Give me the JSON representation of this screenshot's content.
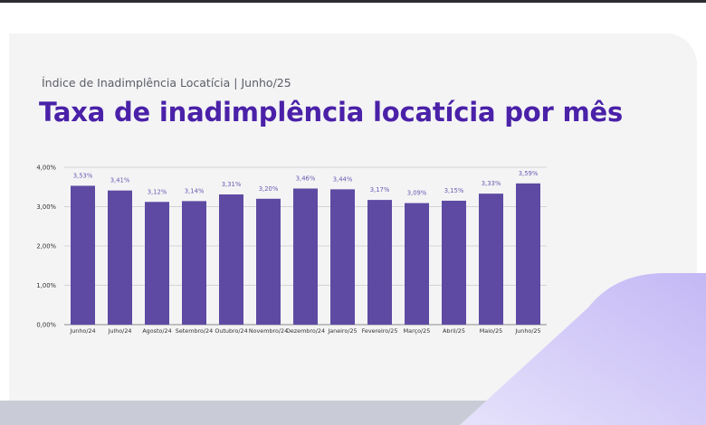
{
  "header": {
    "subtitle": "Índice de Inadimplência Locatícia | Junho/25",
    "title": "Taxa de inadimplência locatícia por mês"
  },
  "colors": {
    "bar": "#5e4aa3",
    "title": "#4a21a8",
    "value_label": "#6a5bb0",
    "accent_gradient_start": "#e6e2fb",
    "accent_gradient_end": "#c4b8f5"
  },
  "chart_data": {
    "type": "bar",
    "categories": [
      "Junho/24",
      "Julho/24",
      "Agosto/24",
      "Setembro/24",
      "Outubro/24",
      "Novembro/24",
      "Dezembro/24",
      "Janeiro/25",
      "Fevereiro/25",
      "Março/25",
      "Abril/25",
      "Maio/25",
      "Junho/25"
    ],
    "values": [
      3.53,
      3.41,
      3.12,
      3.14,
      3.31,
      3.2,
      3.46,
      3.44,
      3.17,
      3.09,
      3.15,
      3.33,
      3.59
    ],
    "value_labels": [
      "3,53%",
      "3,41%",
      "3,12%",
      "3,14%",
      "3,31%",
      "3,20%",
      "3,46%",
      "3,44%",
      "3,17%",
      "3,09%",
      "3,15%",
      "3,33%",
      "3,59%"
    ],
    "yticks": [
      0,
      1,
      2,
      3,
      4
    ],
    "ytick_labels": [
      "0,00%",
      "1,00%",
      "2,00%",
      "3,00%",
      "4,00%"
    ],
    "ylim": [
      0,
      4
    ],
    "grid": true
  }
}
